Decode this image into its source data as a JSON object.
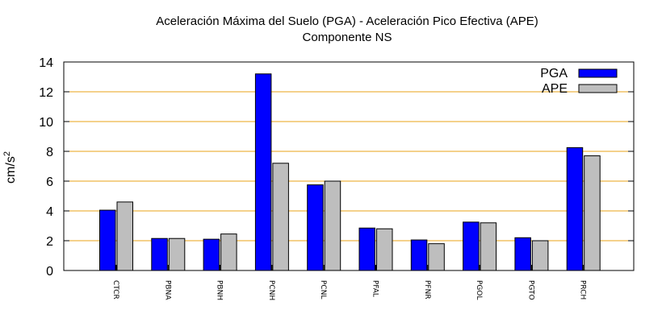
{
  "chart_data": {
    "type": "bar",
    "title": "Aceleración Máxima del Suelo (PGA) -  Aceleración Pico Efectiva (APE)",
    "subtitle": "Componente NS",
    "xlabel": "",
    "ylabel": "cm/s",
    "ylabel_superscript": "2",
    "ylim": [
      0,
      14
    ],
    "yticks": [
      0,
      2,
      4,
      6,
      8,
      10,
      12,
      14
    ],
    "grid": "horizontal",
    "legend_position": "top-right",
    "categories": [
      "CTCR",
      "PBNA",
      "PBNH",
      "PCNH",
      "PCNL",
      "PFAL",
      "PFNR",
      "PGOL",
      "PGTO",
      "PRCH"
    ],
    "series": [
      {
        "name": "PGA",
        "color": "#0000ff",
        "values": [
          4.05,
          2.15,
          2.1,
          13.2,
          5.75,
          2.85,
          2.05,
          3.25,
          2.2,
          8.25
        ]
      },
      {
        "name": "APE",
        "color": "#bebebe",
        "values": [
          4.6,
          2.15,
          2.45,
          7.2,
          6.0,
          2.8,
          1.8,
          3.2,
          2.0,
          7.7
        ]
      }
    ],
    "gridline_color": "#e8a317"
  }
}
